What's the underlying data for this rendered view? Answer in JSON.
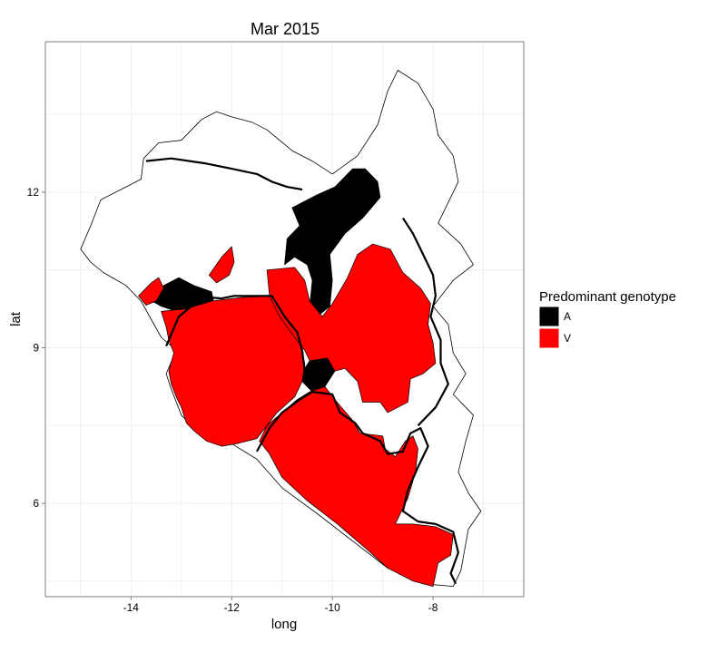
{
  "chart_data": {
    "type": "map",
    "title": "Mar 2015",
    "xlabel": "long",
    "ylabel": "lat",
    "x_ticks": [
      -14,
      -12,
      -10,
      -8
    ],
    "y_ticks": [
      6,
      9,
      12
    ],
    "xlim": [
      -15.7,
      -6.2
    ],
    "ylim": [
      4.2,
      14.9
    ],
    "grid": true,
    "legend": {
      "title": "Predominant genotype",
      "position": "right",
      "entries": [
        {
          "label": "A",
          "color": "#000000"
        },
        {
          "label": "V",
          "color": "#ff0000"
        }
      ]
    },
    "regions": [
      {
        "id": "sl-a-west",
        "genotype": "A",
        "poly": [
          [
            -13.35,
            10.2
          ],
          [
            -13.05,
            10.35
          ],
          [
            -12.75,
            10.2
          ],
          [
            -12.4,
            10.08
          ],
          [
            -12.35,
            9.85
          ],
          [
            -12.75,
            9.7
          ],
          [
            -13.1,
            9.7
          ],
          [
            -13.4,
            9.8
          ],
          [
            -13.55,
            9.88
          ],
          [
            -13.45,
            10.05
          ]
        ]
      },
      {
        "id": "gn-a-north",
        "genotype": "A",
        "poly": [
          [
            -10.8,
            11.7
          ],
          [
            -10.3,
            11.95
          ],
          [
            -9.95,
            12.1
          ],
          [
            -9.6,
            12.45
          ],
          [
            -9.35,
            12.45
          ],
          [
            -9.1,
            12.2
          ],
          [
            -9.05,
            11.9
          ],
          [
            -9.4,
            11.5
          ],
          [
            -9.75,
            11.2
          ],
          [
            -10.05,
            10.8
          ],
          [
            -10.0,
            10.3
          ],
          [
            -10.05,
            9.8
          ],
          [
            -10.3,
            9.6
          ],
          [
            -10.45,
            9.8
          ],
          [
            -10.4,
            10.3
          ],
          [
            -10.5,
            10.6
          ],
          [
            -10.75,
            10.75
          ],
          [
            -10.95,
            10.6
          ],
          [
            -10.9,
            11.1
          ],
          [
            -10.65,
            11.35
          ]
        ]
      },
      {
        "id": "gn-a-south",
        "genotype": "A",
        "poly": [
          [
            -10.45,
            8.75
          ],
          [
            -10.1,
            8.8
          ],
          [
            -9.95,
            8.55
          ],
          [
            -10.15,
            8.25
          ],
          [
            -10.4,
            8.15
          ],
          [
            -10.6,
            8.35
          ],
          [
            -10.55,
            8.6
          ]
        ]
      },
      {
        "id": "sl-v-main",
        "genotype": "V",
        "poly": [
          [
            -13.4,
            9.7
          ],
          [
            -12.9,
            9.75
          ],
          [
            -12.4,
            9.9
          ],
          [
            -11.8,
            9.97
          ],
          [
            -11.15,
            10.0
          ],
          [
            -10.95,
            9.65
          ],
          [
            -10.65,
            9.1
          ],
          [
            -10.55,
            8.7
          ],
          [
            -10.6,
            8.35
          ],
          [
            -10.75,
            8.05
          ],
          [
            -11.1,
            7.75
          ],
          [
            -11.3,
            7.5
          ],
          [
            -11.5,
            7.25
          ],
          [
            -11.9,
            7.15
          ],
          [
            -12.2,
            7.1
          ],
          [
            -12.5,
            7.2
          ],
          [
            -12.75,
            7.4
          ],
          [
            -12.9,
            7.55
          ],
          [
            -13.0,
            7.85
          ],
          [
            -13.1,
            8.05
          ],
          [
            -13.2,
            8.3
          ],
          [
            -13.25,
            8.55
          ],
          [
            -13.15,
            8.9
          ],
          [
            -13.25,
            9.15
          ],
          [
            -13.3,
            9.4
          ]
        ]
      },
      {
        "id": "sl-v-north",
        "genotype": "V",
        "poly": [
          [
            -12.2,
            10.75
          ],
          [
            -12.0,
            10.95
          ],
          [
            -11.95,
            10.65
          ],
          [
            -12.05,
            10.4
          ],
          [
            -12.3,
            10.25
          ],
          [
            -12.45,
            10.4
          ]
        ]
      },
      {
        "id": "gn-v-coast",
        "genotype": "V",
        "poly": [
          [
            -13.85,
            10.0
          ],
          [
            -13.6,
            10.25
          ],
          [
            -13.45,
            10.35
          ],
          [
            -13.35,
            10.15
          ],
          [
            -13.5,
            9.9
          ],
          [
            -13.7,
            9.82
          ]
        ]
      },
      {
        "id": "gn-v-forest",
        "genotype": "V",
        "poly": [
          [
            -11.3,
            10.5
          ],
          [
            -10.75,
            10.55
          ],
          [
            -10.55,
            10.3
          ],
          [
            -10.45,
            9.9
          ],
          [
            -10.2,
            9.6
          ],
          [
            -10.0,
            9.85
          ],
          [
            -9.7,
            10.35
          ],
          [
            -9.5,
            10.8
          ],
          [
            -9.2,
            11.0
          ],
          [
            -8.85,
            10.9
          ],
          [
            -8.6,
            10.45
          ],
          [
            -8.25,
            10.15
          ],
          [
            -8.05,
            9.85
          ],
          [
            -8.1,
            9.45
          ],
          [
            -8.0,
            9.1
          ],
          [
            -7.95,
            8.7
          ],
          [
            -8.2,
            8.5
          ],
          [
            -8.45,
            8.4
          ],
          [
            -8.5,
            7.95
          ],
          [
            -8.9,
            7.75
          ],
          [
            -9.05,
            7.95
          ],
          [
            -9.4,
            7.95
          ],
          [
            -9.5,
            8.35
          ],
          [
            -9.75,
            8.6
          ],
          [
            -9.95,
            8.55
          ],
          [
            -10.1,
            8.8
          ],
          [
            -10.45,
            8.75
          ],
          [
            -10.55,
            8.95
          ],
          [
            -10.75,
            9.2
          ],
          [
            -11.05,
            9.6
          ],
          [
            -11.25,
            10.0
          ]
        ]
      },
      {
        "id": "lr-v",
        "genotype": "V",
        "poly": [
          [
            -11.3,
            7.5
          ],
          [
            -11.0,
            7.75
          ],
          [
            -10.7,
            8.0
          ],
          [
            -10.45,
            8.15
          ],
          [
            -10.15,
            8.25
          ],
          [
            -9.95,
            8.0
          ],
          [
            -9.6,
            7.6
          ],
          [
            -9.45,
            7.35
          ],
          [
            -9.0,
            7.3
          ],
          [
            -8.95,
            7.05
          ],
          [
            -8.75,
            6.9
          ],
          [
            -8.55,
            7.2
          ],
          [
            -8.4,
            7.3
          ],
          [
            -8.3,
            7.05
          ],
          [
            -8.35,
            6.6
          ],
          [
            -8.5,
            6.1
          ],
          [
            -8.75,
            5.6
          ],
          [
            -8.4,
            5.6
          ],
          [
            -7.95,
            5.55
          ],
          [
            -7.6,
            5.4
          ],
          [
            -7.65,
            5.0
          ],
          [
            -7.9,
            4.85
          ],
          [
            -8.0,
            4.4
          ],
          [
            -8.4,
            4.5
          ],
          [
            -8.9,
            4.75
          ],
          [
            -9.3,
            5.1
          ],
          [
            -9.9,
            5.6
          ],
          [
            -10.5,
            6.05
          ],
          [
            -11.0,
            6.5
          ],
          [
            -11.25,
            6.95
          ],
          [
            -11.45,
            7.2
          ]
        ]
      }
    ],
    "borders": [
      {
        "id": "sl-gn-border",
        "line": [
          [
            -13.3,
            9.03
          ],
          [
            -13.05,
            9.6
          ],
          [
            -12.7,
            9.88
          ],
          [
            -12.45,
            9.97
          ],
          [
            -12.2,
            9.95
          ],
          [
            -11.95,
            10.0
          ],
          [
            -11.2,
            10.0
          ],
          [
            -10.95,
            9.6
          ],
          [
            -10.7,
            9.3
          ],
          [
            -10.6,
            8.95
          ],
          [
            -10.55,
            8.55
          ],
          [
            -10.4,
            8.15
          ],
          [
            -10.65,
            8.0
          ],
          [
            -11.0,
            7.75
          ],
          [
            -11.25,
            7.45
          ],
          [
            -11.5,
            7.0
          ]
        ]
      },
      {
        "id": "lr-gn-border",
        "line": [
          [
            -10.4,
            8.15
          ],
          [
            -10.0,
            8.1
          ],
          [
            -9.85,
            7.75
          ],
          [
            -9.55,
            7.55
          ],
          [
            -9.4,
            7.35
          ],
          [
            -9.05,
            7.2
          ],
          [
            -8.9,
            6.95
          ],
          [
            -8.6,
            7.0
          ],
          [
            -8.45,
            7.35
          ],
          [
            -8.25,
            7.45
          ],
          [
            -8.1,
            7.1
          ],
          [
            -8.3,
            6.7
          ],
          [
            -8.5,
            6.25
          ],
          [
            -8.6,
            5.85
          ],
          [
            -8.3,
            5.65
          ],
          [
            -7.95,
            5.6
          ],
          [
            -7.6,
            5.45
          ],
          [
            -7.5,
            5.05
          ],
          [
            -7.65,
            4.65
          ],
          [
            -7.55,
            4.45
          ]
        ]
      },
      {
        "id": "gn-ci-border",
        "line": [
          [
            -8.6,
            11.5
          ],
          [
            -8.4,
            11.2
          ],
          [
            -8.2,
            10.8
          ],
          [
            -8.0,
            10.4
          ],
          [
            -7.95,
            10.0
          ],
          [
            -8.05,
            9.6
          ],
          [
            -7.85,
            9.15
          ],
          [
            -7.85,
            8.7
          ],
          [
            -7.7,
            8.3
          ],
          [
            -7.95,
            7.85
          ],
          [
            -8.3,
            7.5
          ]
        ]
      },
      {
        "id": "gn-north-border",
        "line": [
          [
            -13.7,
            12.6
          ],
          [
            -13.2,
            12.65
          ],
          [
            -12.5,
            12.55
          ],
          [
            -12.0,
            12.45
          ],
          [
            -11.5,
            12.35
          ],
          [
            -11.2,
            12.2
          ],
          [
            -10.9,
            12.1
          ],
          [
            -10.6,
            12.05
          ]
        ]
      }
    ],
    "outline": [
      [
        -15.0,
        10.9
      ],
      [
        -14.8,
        11.35
      ],
      [
        -14.6,
        11.85
      ],
      [
        -14.2,
        12.05
      ],
      [
        -13.8,
        12.25
      ],
      [
        -13.75,
        12.65
      ],
      [
        -13.45,
        12.95
      ],
      [
        -13.0,
        13.0
      ],
      [
        -12.6,
        13.4
      ],
      [
        -12.3,
        13.55
      ],
      [
        -12.0,
        13.45
      ],
      [
        -11.6,
        13.35
      ],
      [
        -11.3,
        13.2
      ],
      [
        -10.8,
        12.8
      ],
      [
        -10.4,
        12.6
      ],
      [
        -10.0,
        12.35
      ],
      [
        -9.5,
        12.7
      ],
      [
        -9.1,
        13.3
      ],
      [
        -8.9,
        13.95
      ],
      [
        -8.7,
        14.35
      ],
      [
        -8.3,
        14.1
      ],
      [
        -8.0,
        13.6
      ],
      [
        -7.9,
        13.1
      ],
      [
        -7.6,
        12.7
      ],
      [
        -7.5,
        12.2
      ],
      [
        -7.7,
        11.8
      ],
      [
        -7.9,
        11.4
      ],
      [
        -7.45,
        11.0
      ],
      [
        -7.2,
        10.6
      ],
      [
        -7.6,
        10.3
      ],
      [
        -8.0,
        9.8
      ],
      [
        -7.7,
        9.45
      ],
      [
        -7.6,
        8.9
      ],
      [
        -7.35,
        8.5
      ],
      [
        -7.6,
        8.1
      ],
      [
        -7.2,
        7.7
      ],
      [
        -7.35,
        7.2
      ],
      [
        -7.5,
        6.6
      ],
      [
        -7.3,
        6.2
      ],
      [
        -7.05,
        5.85
      ],
      [
        -7.3,
        5.5
      ],
      [
        -7.45,
        4.7
      ],
      [
        -7.6,
        4.4
      ],
      [
        -8.2,
        4.45
      ],
      [
        -8.9,
        4.75
      ],
      [
        -9.5,
        5.2
      ],
      [
        -10.3,
        5.8
      ],
      [
        -11.0,
        6.3
      ],
      [
        -11.5,
        6.85
      ],
      [
        -12.0,
        7.15
      ],
      [
        -12.6,
        7.3
      ],
      [
        -13.0,
        7.7
      ],
      [
        -13.2,
        8.2
      ],
      [
        -13.3,
        8.5
      ],
      [
        -13.1,
        8.95
      ],
      [
        -13.4,
        9.2
      ],
      [
        -13.6,
        9.55
      ],
      [
        -13.8,
        9.9
      ],
      [
        -14.1,
        10.2
      ],
      [
        -14.55,
        10.45
      ],
      [
        -14.8,
        10.65
      ]
    ]
  }
}
